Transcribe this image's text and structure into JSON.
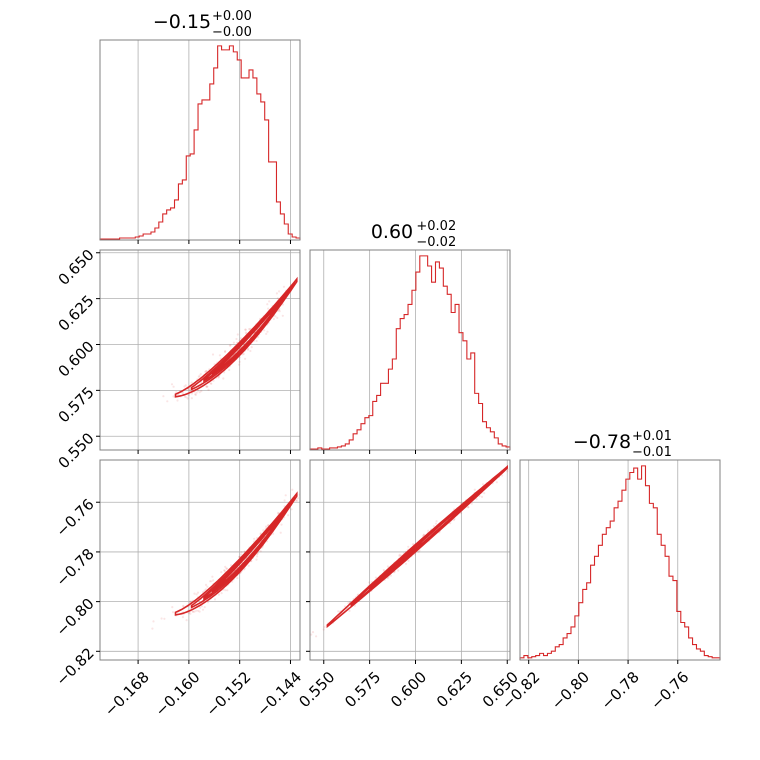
{
  "colors": {
    "series": "#d62728",
    "grid": "#b0b0b0",
    "axes_edge": "#808080",
    "background": "#ffffff"
  },
  "chart_data": {
    "type": "corner",
    "parameters": [
      {
        "index": 0,
        "range": [
          -0.174,
          -0.1425
        ],
        "ticks": [
          "−0.168",
          "−0.160",
          "−0.152",
          "−0.144"
        ],
        "tick_values": [
          -0.168,
          -0.16,
          -0.152,
          -0.144
        ]
      },
      {
        "index": 1,
        "range": [
          0.5425,
          0.6515
        ],
        "ticks": [
          "0.550",
          "0.575",
          "0.600",
          "0.625",
          "0.650"
        ],
        "tick_values": [
          0.55,
          0.575,
          0.6,
          0.625,
          0.65
        ]
      },
      {
        "index": 2,
        "range": [
          -0.8235,
          -0.743
        ],
        "ticks": [
          "−0.82",
          "−0.80",
          "−0.78",
          "−0.76"
        ],
        "tick_values": [
          -0.82,
          -0.8,
          -0.78,
          -0.76
        ]
      }
    ],
    "titles": [
      {
        "value": "−0.15",
        "plus": "+0.00",
        "minus": "−0.00"
      },
      {
        "value": "0.60",
        "plus": "+0.02",
        "minus": "−0.02"
      },
      {
        "value": "−0.78",
        "plus": "+0.01",
        "minus": "−0.01"
      }
    ],
    "histograms": [
      [
        0.5,
        0.5,
        0.5,
        0.5,
        0.5,
        1,
        1,
        1,
        1,
        1.5,
        2,
        3,
        3,
        4,
        6,
        9,
        13,
        15,
        16,
        20,
        28,
        30,
        42,
        43,
        55,
        68,
        70,
        70,
        78,
        86,
        97,
        95,
        95,
        97,
        94,
        90,
        81,
        81,
        85,
        81,
        73,
        69,
        60,
        39,
        39,
        19,
        13,
        8,
        3,
        1.5,
        1
      ],
      [
        0.5,
        0.5,
        1,
        0.5,
        0.5,
        1,
        1,
        1.5,
        2,
        3,
        5,
        8,
        10,
        13,
        16,
        17,
        24,
        27,
        33,
        33,
        40,
        45,
        60,
        65,
        67,
        72,
        79,
        88,
        96,
        96,
        91,
        83,
        93,
        90,
        81,
        77,
        68,
        72,
        58,
        54,
        45,
        48,
        28,
        23,
        14,
        11,
        9,
        6,
        3,
        2,
        1.5
      ],
      [
        1,
        2,
        1,
        1.5,
        2,
        3,
        2,
        3,
        4,
        6,
        7,
        10,
        12,
        15,
        20,
        26,
        32,
        35,
        43,
        47,
        52,
        57,
        60,
        63,
        69,
        72,
        77,
        82,
        85,
        87,
        82,
        88,
        79,
        71,
        69,
        57,
        52,
        47,
        38,
        36,
        22,
        17,
        15,
        10,
        7,
        5,
        4,
        2,
        1.5,
        1,
        1
      ]
    ],
    "scatter_2d": [
      {
        "row": 1,
        "col": 0,
        "ridge_x": [
          -0.1625,
          -0.143
        ],
        "ridge_y": [
          0.572,
          0.635
        ]
      },
      {
        "row": 2,
        "col": 0,
        "ridge_x": [
          -0.1625,
          -0.143
        ],
        "ridge_y": [
          -0.805,
          -0.757
        ]
      },
      {
        "row": 2,
        "col": 1,
        "ridge_x": [
          0.55,
          0.65
        ],
        "ridge_y": [
          -0.811,
          -0.746
        ]
      }
    ],
    "grid": true
  }
}
